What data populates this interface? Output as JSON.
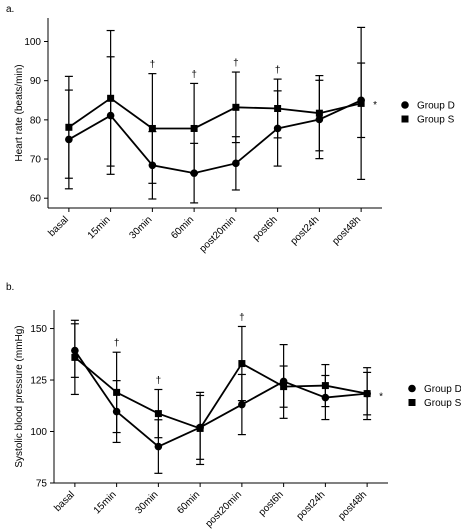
{
  "chart_data": [
    {
      "type": "line",
      "panel_label": "a.",
      "ylabel": "Heart rate (beats/min)",
      "categories": [
        "basal",
        "15min",
        "30min",
        "60min",
        "post20min",
        "post6h",
        "post24h",
        "post48h"
      ],
      "ylim": [
        57.5,
        106
      ],
      "yticks": [
        60,
        70,
        80,
        90,
        100
      ],
      "series": [
        {
          "name": "Group D",
          "marker": "circle",
          "color": "#000000",
          "values": [
            75.0,
            81.1,
            68.4,
            66.4,
            68.9,
            77.8,
            80.1,
            85.0
          ],
          "errors": [
            12.6,
            15.0,
            8.6,
            7.6,
            6.8,
            9.6,
            10.0,
            9.5
          ]
        },
        {
          "name": "Group S",
          "marker": "square",
          "color": "#000000",
          "values": [
            78.1,
            85.5,
            77.8,
            77.8,
            83.2,
            82.9,
            81.7,
            84.2
          ],
          "errors": [
            13.0,
            17.3,
            14.0,
            11.5,
            9.0,
            7.5,
            9.6,
            19.4
          ]
        }
      ],
      "significance_markers": {
        "text": "†",
        "categories": [
          "30min",
          "60min",
          "post20min",
          "post6h"
        ]
      },
      "overall_marker": "*",
      "legend": "right"
    },
    {
      "type": "line",
      "panel_label": "b.",
      "ylabel": "Systolic blood pressure (mmHg)",
      "categories": [
        "basal",
        "15min",
        "30min",
        "60min",
        "post20min",
        "post6h",
        "post24h",
        "post48h"
      ],
      "ylim": [
        75,
        159
      ],
      "yticks": [
        75,
        100,
        125,
        150
      ],
      "series": [
        {
          "name": "Group D",
          "marker": "circle",
          "color": "#000000",
          "values": [
            139.3,
            109.7,
            92.7,
            102.0,
            113.1,
            124.3,
            116.5,
            118.4
          ],
          "errors": [
            13.0,
            15.0,
            13.0,
            15.5,
            14.6,
            17.9,
            10.7,
            10.3
          ]
        },
        {
          "name": "Group S",
          "marker": "square",
          "color": "#000000",
          "values": [
            136.0,
            119.0,
            108.7,
            101.5,
            133.0,
            121.8,
            122.3,
            118.4
          ],
          "errors": [
            18.0,
            19.5,
            11.7,
            17.5,
            18.0,
            10.0,
            10.2,
            12.6
          ]
        }
      ],
      "significance_markers": {
        "text": "†",
        "categories": [
          "15min",
          "30min",
          "post20min"
        ]
      },
      "overall_marker": "*",
      "legend": "right"
    }
  ]
}
